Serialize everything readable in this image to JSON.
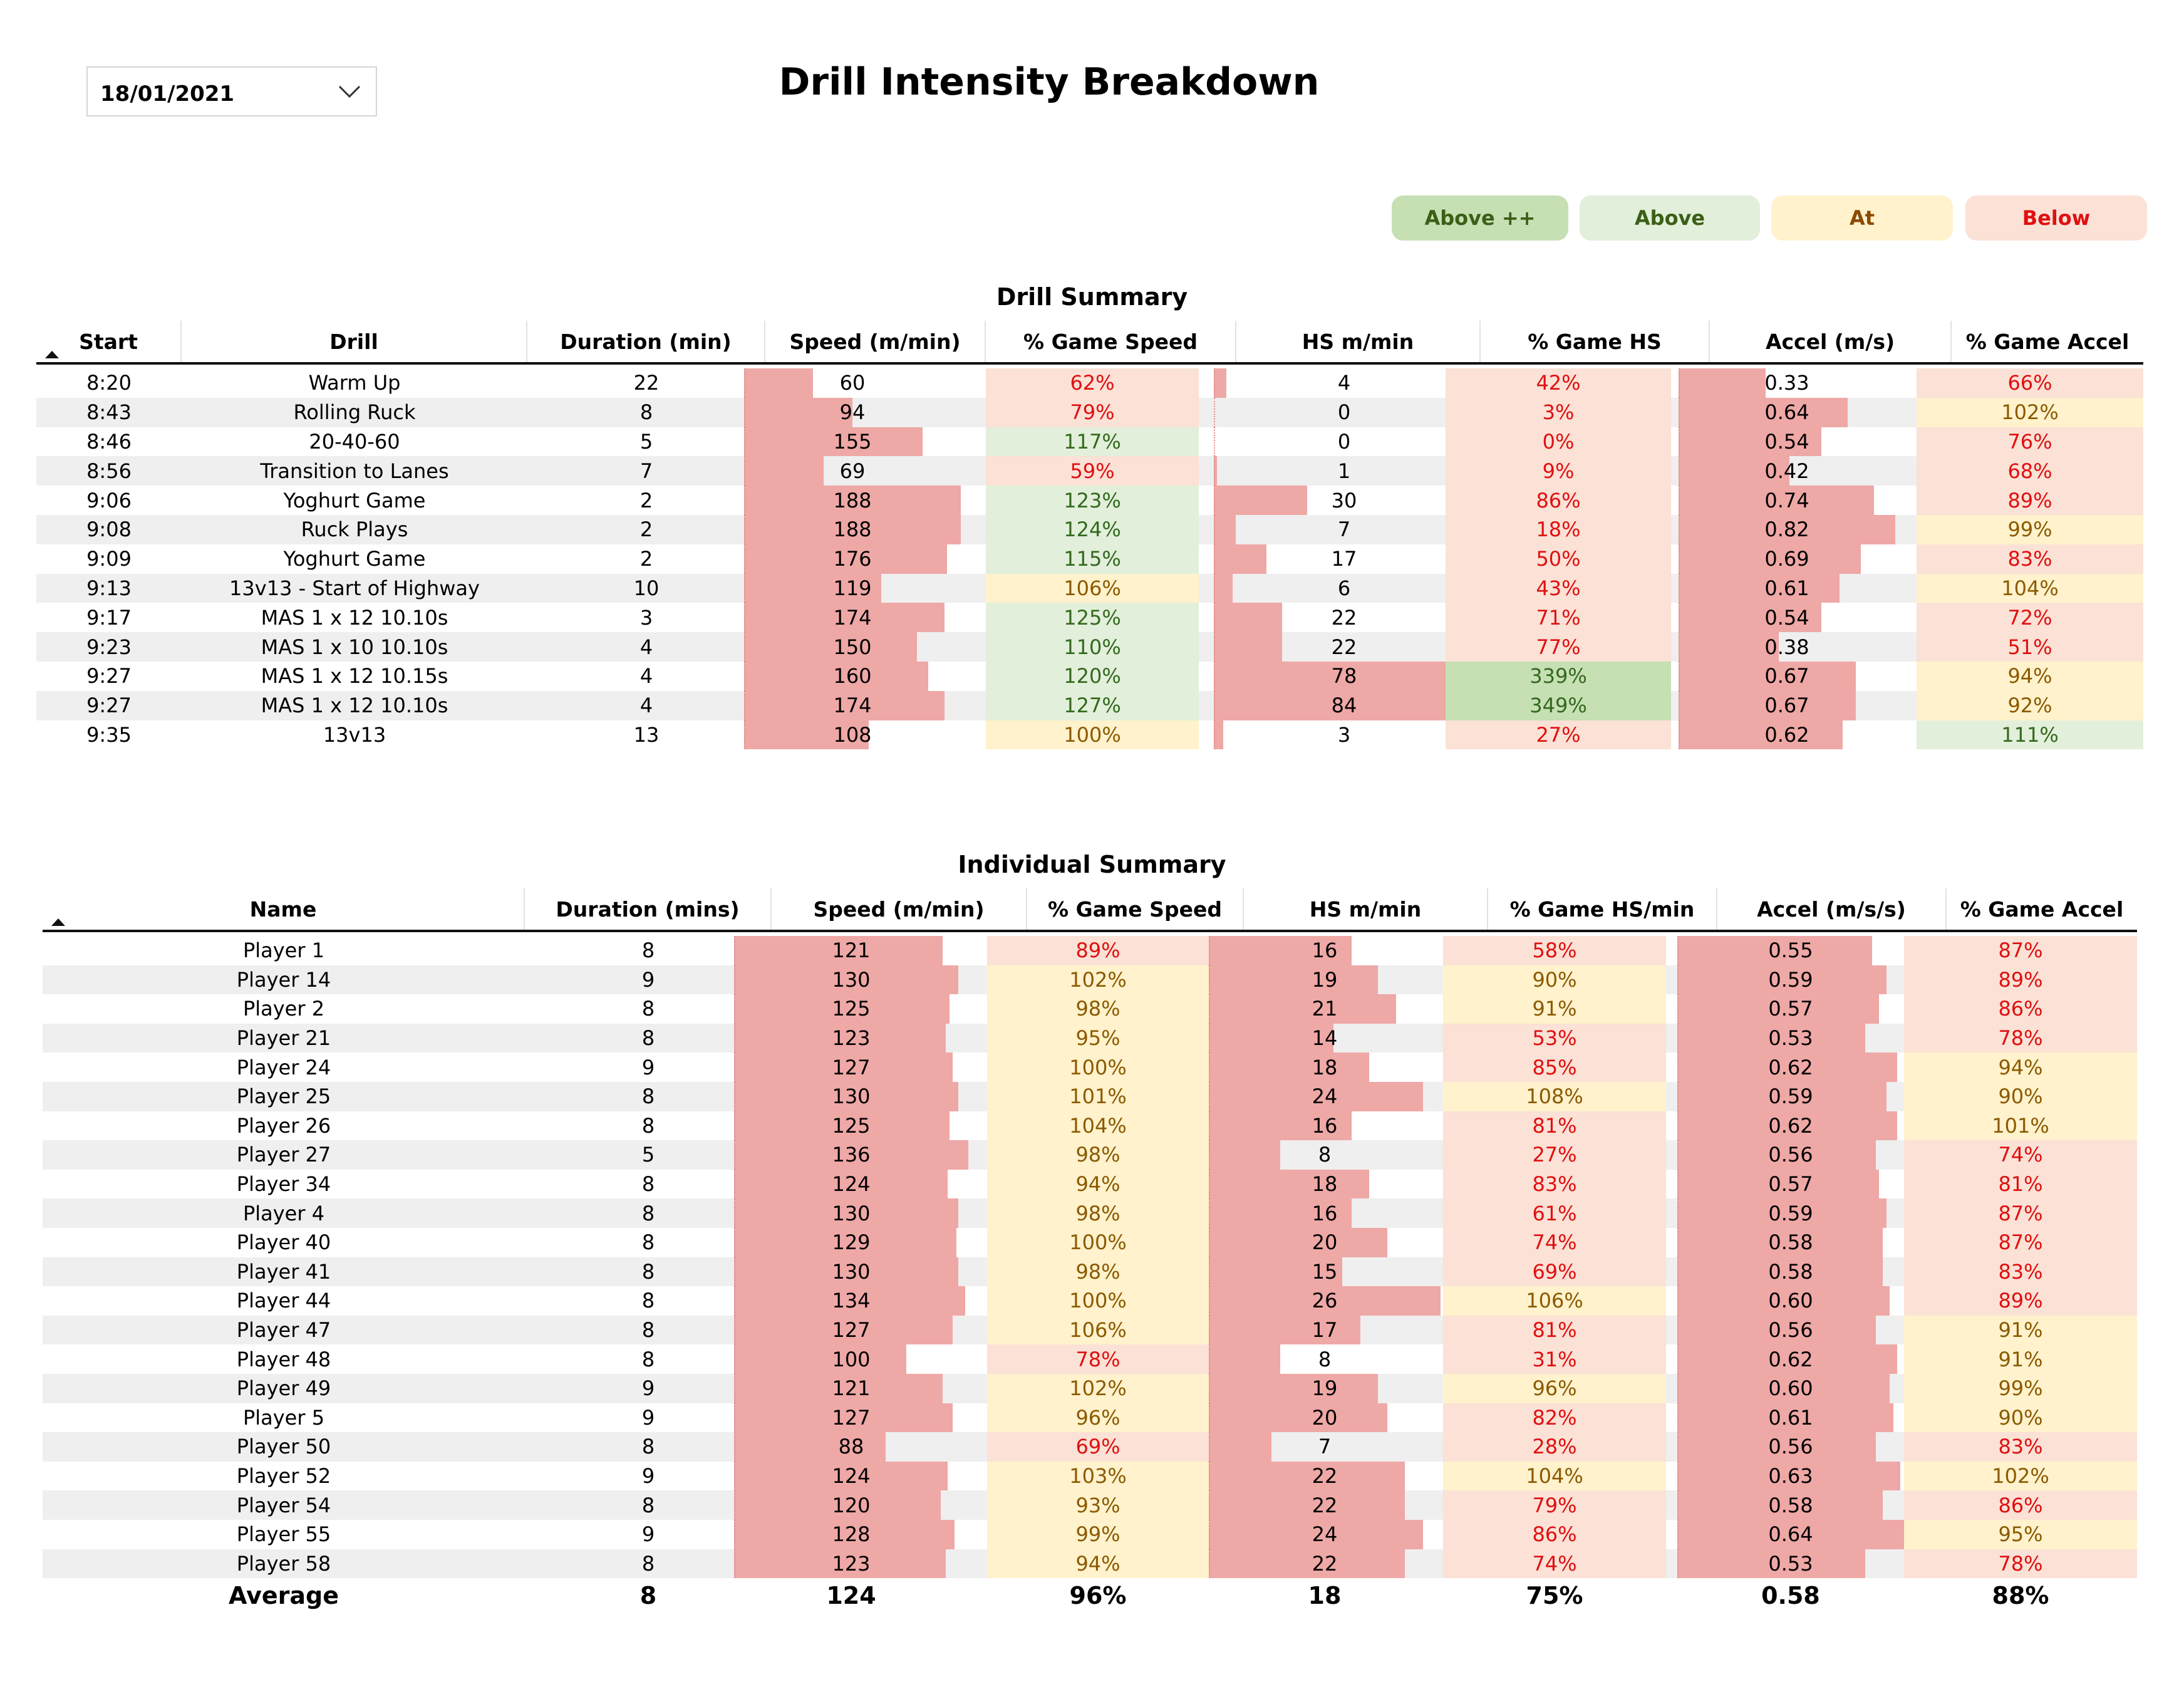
{
  "slicer": {
    "value": "18/01/2021"
  },
  "title": "Drill Intensity Breakdown",
  "legend": [
    {
      "label": "Above ++",
      "bg": "#c6dfb3",
      "color": "#3a5f16"
    },
    {
      "label": "Above",
      "bg": "#e2efda",
      "color": "#3a5f16"
    },
    {
      "label": "At",
      "bg": "#fff2cc",
      "color": "#8b4a00"
    },
    {
      "label": "Below",
      "bg": "#fbe1d6",
      "color": "#e01010"
    }
  ],
  "drill": {
    "title": "Drill Summary",
    "headers": [
      "Start",
      "Drill",
      "Duration (min)",
      "Speed (m/min)",
      "% Game Speed",
      "HS m/min",
      "% Game HS",
      "Accel (m/s)",
      "% Game Accel"
    ],
    "max": {
      "speed": 188,
      "hs": 84,
      "accel": 0.82
    },
    "rows": [
      {
        "start": "8:20",
        "drill": "Warm Up",
        "dur": "22",
        "speed": "60",
        "pspeed": "62%",
        "hs": "4",
        "phs": "42%",
        "accel": "0.33",
        "paccel": "66%",
        "c": [
          "below",
          "below",
          "below"
        ]
      },
      {
        "start": "8:43",
        "drill": "Rolling Ruck",
        "dur": "8",
        "speed": "94",
        "pspeed": "79%",
        "hs": "0",
        "phs": "3%",
        "accel": "0.64",
        "paccel": "102%",
        "c": [
          "below",
          "below",
          "at"
        ]
      },
      {
        "start": "8:46",
        "drill": "20-40-60",
        "dur": "5",
        "speed": "155",
        "pspeed": "117%",
        "hs": "0",
        "phs": "0%",
        "accel": "0.54",
        "paccel": "76%",
        "c": [
          "above",
          "below",
          "below"
        ]
      },
      {
        "start": "8:56",
        "drill": "Transition to Lanes",
        "dur": "7",
        "speed": "69",
        "pspeed": "59%",
        "hs": "1",
        "phs": "9%",
        "accel": "0.42",
        "paccel": "68%",
        "c": [
          "below",
          "below",
          "below"
        ]
      },
      {
        "start": "9:06",
        "drill": "Yoghurt Game",
        "dur": "2",
        "speed": "188",
        "pspeed": "123%",
        "hs": "30",
        "phs": "86%",
        "accel": "0.74",
        "paccel": "89%",
        "c": [
          "above",
          "below",
          "below"
        ]
      },
      {
        "start": "9:08",
        "drill": "Ruck Plays",
        "dur": "2",
        "speed": "188",
        "pspeed": "124%",
        "hs": "7",
        "phs": "18%",
        "accel": "0.82",
        "paccel": "99%",
        "c": [
          "above",
          "below",
          "at"
        ]
      },
      {
        "start": "9:09",
        "drill": "Yoghurt Game",
        "dur": "2",
        "speed": "176",
        "pspeed": "115%",
        "hs": "17",
        "phs": "50%",
        "accel": "0.69",
        "paccel": "83%",
        "c": [
          "above",
          "below",
          "below"
        ]
      },
      {
        "start": "9:13",
        "drill": "13v13 - Start of Highway",
        "dur": "10",
        "speed": "119",
        "pspeed": "106%",
        "hs": "6",
        "phs": "43%",
        "accel": "0.61",
        "paccel": "104%",
        "c": [
          "at",
          "below",
          "at"
        ]
      },
      {
        "start": "9:17",
        "drill": "MAS 1 x 12 10.10s",
        "dur": "3",
        "speed": "174",
        "pspeed": "125%",
        "hs": "22",
        "phs": "71%",
        "accel": "0.54",
        "paccel": "72%",
        "c": [
          "above",
          "below",
          "below"
        ]
      },
      {
        "start": "9:23",
        "drill": "MAS 1 x 10 10.10s",
        "dur": "4",
        "speed": "150",
        "pspeed": "110%",
        "hs": "22",
        "phs": "77%",
        "accel": "0.38",
        "paccel": "51%",
        "c": [
          "above",
          "below",
          "below"
        ]
      },
      {
        "start": "9:27",
        "drill": "MAS 1 x 12 10.15s",
        "dur": "4",
        "speed": "160",
        "pspeed": "120%",
        "hs": "78",
        "phs": "339%",
        "accel": "0.67",
        "paccel": "94%",
        "c": [
          "above",
          "abovepp",
          "at"
        ]
      },
      {
        "start": "9:27",
        "drill": "MAS 1 x 12 10.10s",
        "dur": "4",
        "speed": "174",
        "pspeed": "127%",
        "hs": "84",
        "phs": "349%",
        "accel": "0.67",
        "paccel": "92%",
        "c": [
          "above",
          "abovepp",
          "at"
        ]
      },
      {
        "start": "9:35",
        "drill": "13v13",
        "dur": "13",
        "speed": "108",
        "pspeed": "100%",
        "hs": "3",
        "phs": "27%",
        "accel": "0.62",
        "paccel": "111%",
        "c": [
          "at",
          "below",
          "above"
        ]
      }
    ]
  },
  "individual": {
    "title": "Individual Summary",
    "headers": [
      "Name",
      "Duration (mins)",
      "Speed (m/min)",
      "% Game Speed",
      "HS m/min",
      "% Game HS/min",
      "Accel (m/s/s)",
      "% Game Accel"
    ],
    "max": {
      "speed": 136,
      "hs": 26,
      "accel": 0.64
    },
    "rows": [
      {
        "name": "Player 1",
        "dur": "8",
        "speed": "121",
        "pspeed": "89%",
        "hs": "16",
        "phs": "58%",
        "accel": "0.55",
        "paccel": "87%",
        "c": [
          "below",
          "below",
          "below"
        ]
      },
      {
        "name": "Player 14",
        "dur": "9",
        "speed": "130",
        "pspeed": "102%",
        "hs": "19",
        "phs": "90%",
        "accel": "0.59",
        "paccel": "89%",
        "c": [
          "at",
          "at",
          "below"
        ]
      },
      {
        "name": "Player 2",
        "dur": "8",
        "speed": "125",
        "pspeed": "98%",
        "hs": "21",
        "phs": "91%",
        "accel": "0.57",
        "paccel": "86%",
        "c": [
          "at",
          "at",
          "below"
        ]
      },
      {
        "name": "Player 21",
        "dur": "8",
        "speed": "123",
        "pspeed": "95%",
        "hs": "14",
        "phs": "53%",
        "accel": "0.53",
        "paccel": "78%",
        "c": [
          "at",
          "below",
          "below"
        ]
      },
      {
        "name": "Player 24",
        "dur": "9",
        "speed": "127",
        "pspeed": "100%",
        "hs": "18",
        "phs": "85%",
        "accel": "0.62",
        "paccel": "94%",
        "c": [
          "at",
          "below",
          "at"
        ]
      },
      {
        "name": "Player 25",
        "dur": "8",
        "speed": "130",
        "pspeed": "101%",
        "hs": "24",
        "phs": "108%",
        "accel": "0.59",
        "paccel": "90%",
        "c": [
          "at",
          "at",
          "at"
        ]
      },
      {
        "name": "Player 26",
        "dur": "8",
        "speed": "125",
        "pspeed": "104%",
        "hs": "16",
        "phs": "81%",
        "accel": "0.62",
        "paccel": "101%",
        "c": [
          "at",
          "below",
          "at"
        ]
      },
      {
        "name": "Player 27",
        "dur": "5",
        "speed": "136",
        "pspeed": "98%",
        "hs": "8",
        "phs": "27%",
        "accel": "0.56",
        "paccel": "74%",
        "c": [
          "at",
          "below",
          "below"
        ]
      },
      {
        "name": "Player 34",
        "dur": "8",
        "speed": "124",
        "pspeed": "94%",
        "hs": "18",
        "phs": "83%",
        "accel": "0.57",
        "paccel": "81%",
        "c": [
          "at",
          "below",
          "below"
        ]
      },
      {
        "name": "Player 4",
        "dur": "8",
        "speed": "130",
        "pspeed": "98%",
        "hs": "16",
        "phs": "61%",
        "accel": "0.59",
        "paccel": "87%",
        "c": [
          "at",
          "below",
          "below"
        ]
      },
      {
        "name": "Player 40",
        "dur": "8",
        "speed": "129",
        "pspeed": "100%",
        "hs": "20",
        "phs": "74%",
        "accel": "0.58",
        "paccel": "87%",
        "c": [
          "at",
          "below",
          "below"
        ]
      },
      {
        "name": "Player 41",
        "dur": "8",
        "speed": "130",
        "pspeed": "98%",
        "hs": "15",
        "phs": "69%",
        "accel": "0.58",
        "paccel": "83%",
        "c": [
          "at",
          "below",
          "below"
        ]
      },
      {
        "name": "Player 44",
        "dur": "8",
        "speed": "134",
        "pspeed": "100%",
        "hs": "26",
        "phs": "106%",
        "accel": "0.60",
        "paccel": "89%",
        "c": [
          "at",
          "at",
          "below"
        ]
      },
      {
        "name": "Player 47",
        "dur": "8",
        "speed": "127",
        "pspeed": "106%",
        "hs": "17",
        "phs": "81%",
        "accel": "0.56",
        "paccel": "91%",
        "c": [
          "at",
          "below",
          "at"
        ]
      },
      {
        "name": "Player 48",
        "dur": "8",
        "speed": "100",
        "pspeed": "78%",
        "hs": "8",
        "phs": "31%",
        "accel": "0.62",
        "paccel": "91%",
        "c": [
          "below",
          "below",
          "at"
        ]
      },
      {
        "name": "Player 49",
        "dur": "9",
        "speed": "121",
        "pspeed": "102%",
        "hs": "19",
        "phs": "96%",
        "accel": "0.60",
        "paccel": "99%",
        "c": [
          "at",
          "at",
          "at"
        ]
      },
      {
        "name": "Player 5",
        "dur": "9",
        "speed": "127",
        "pspeed": "96%",
        "hs": "20",
        "phs": "82%",
        "accel": "0.61",
        "paccel": "90%",
        "c": [
          "at",
          "below",
          "at"
        ]
      },
      {
        "name": "Player 50",
        "dur": "8",
        "speed": "88",
        "pspeed": "69%",
        "hs": "7",
        "phs": "28%",
        "accel": "0.56",
        "paccel": "83%",
        "c": [
          "below",
          "below",
          "below"
        ]
      },
      {
        "name": "Player 52",
        "dur": "9",
        "speed": "124",
        "pspeed": "103%",
        "hs": "22",
        "phs": "104%",
        "accel": "0.63",
        "paccel": "102%",
        "c": [
          "at",
          "at",
          "at"
        ]
      },
      {
        "name": "Player 54",
        "dur": "8",
        "speed": "120",
        "pspeed": "93%",
        "hs": "22",
        "phs": "79%",
        "accel": "0.58",
        "paccel": "86%",
        "c": [
          "at",
          "below",
          "below"
        ]
      },
      {
        "name": "Player 55",
        "dur": "9",
        "speed": "128",
        "pspeed": "99%",
        "hs": "24",
        "phs": "86%",
        "accel": "0.64",
        "paccel": "95%",
        "c": [
          "at",
          "below",
          "at"
        ]
      },
      {
        "name": "Player 58",
        "dur": "8",
        "speed": "123",
        "pspeed": "94%",
        "hs": "22",
        "phs": "74%",
        "accel": "0.53",
        "paccel": "78%",
        "c": [
          "at",
          "below",
          "below"
        ]
      }
    ],
    "average": {
      "label": "Average",
      "dur": "8",
      "speed": "124",
      "pspeed": "96%",
      "hs": "18",
      "phs": "75%",
      "accel": "0.58",
      "paccel": "88%"
    }
  }
}
